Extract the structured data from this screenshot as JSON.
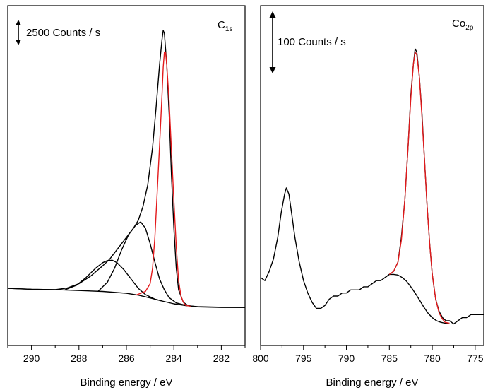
{
  "chart_data": [
    {
      "type": "line",
      "panel_label_main": "C",
      "panel_label_sub": "1s",
      "scale_bar_text": "2500 Counts / s",
      "xlabel": "Binding energy / eV",
      "ylabel": "",
      "xlim": [
        291,
        281
      ],
      "ylim": [
        -0.05,
        1.05
      ],
      "x_ticks": [
        290,
        288,
        286,
        284,
        282
      ],
      "series": [
        {
          "color": "#000000",
          "points": [
            [
              291,
              0.135
            ],
            [
              290,
              0.132
            ],
            [
              289,
              0.131
            ],
            [
              288.5,
              0.136
            ],
            [
              288,
              0.15
            ],
            [
              287.5,
              0.175
            ],
            [
              287,
              0.208
            ],
            [
              286.7,
              0.23
            ],
            [
              286.5,
              0.25
            ],
            [
              286.2,
              0.28
            ],
            [
              285.9,
              0.31
            ],
            [
              285.7,
              0.33
            ],
            [
              285.5,
              0.355
            ],
            [
              285.3,
              0.4
            ],
            [
              285.1,
              0.47
            ],
            [
              284.9,
              0.59
            ],
            [
              284.75,
              0.72
            ],
            [
              284.6,
              0.86
            ],
            [
              284.5,
              0.94
            ],
            [
              284.45,
              0.97
            ],
            [
              284.4,
              0.96
            ],
            [
              284.3,
              0.86
            ],
            [
              284.2,
              0.7
            ],
            [
              284.1,
              0.5
            ],
            [
              284.0,
              0.33
            ],
            [
              283.9,
              0.2
            ],
            [
              283.8,
              0.13
            ],
            [
              283.6,
              0.09
            ],
            [
              283.4,
              0.079
            ],
            [
              283,
              0.075
            ],
            [
              282,
              0.073
            ],
            [
              281,
              0.073
            ]
          ]
        },
        {
          "color": "#000000",
          "points": [
            [
              291,
              0.135
            ],
            [
              290,
              0.132
            ],
            [
              289,
              0.131
            ],
            [
              288,
              0.128
            ],
            [
              287,
              0.125
            ],
            [
              286,
              0.119
            ],
            [
              285.5,
              0.113
            ],
            [
              285,
              0.104
            ],
            [
              284.5,
              0.094
            ],
            [
              284,
              0.085
            ],
            [
              283.5,
              0.079
            ],
            [
              283,
              0.076
            ],
            [
              282,
              0.074
            ],
            [
              281,
              0.073
            ]
          ]
        },
        {
          "color": "#000000",
          "points": [
            [
              288.6,
              0.13
            ],
            [
              288.1,
              0.145
            ],
            [
              287.7,
              0.17
            ],
            [
              287.3,
              0.2
            ],
            [
              287,
              0.218
            ],
            [
              286.8,
              0.225
            ],
            [
              286.6,
              0.226
            ],
            [
              286.4,
              0.218
            ],
            [
              286.1,
              0.195
            ],
            [
              285.8,
              0.165
            ],
            [
              285.5,
              0.135
            ],
            [
              285.2,
              0.115
            ],
            [
              284.8,
              0.1
            ],
            [
              284.5,
              0.094
            ]
          ]
        },
        {
          "color": "#000000",
          "points": [
            [
              287.2,
              0.125
            ],
            [
              286.8,
              0.155
            ],
            [
              286.5,
              0.2
            ],
            [
              286.2,
              0.26
            ],
            [
              285.9,
              0.31
            ],
            [
              285.6,
              0.34
            ],
            [
              285.4,
              0.35
            ],
            [
              285.2,
              0.33
            ],
            [
              285.0,
              0.28
            ],
            [
              284.8,
              0.22
            ],
            [
              284.6,
              0.165
            ],
            [
              284.4,
              0.13
            ],
            [
              284.2,
              0.105
            ],
            [
              283.9,
              0.088
            ],
            [
              283.5,
              0.08
            ]
          ]
        },
        {
          "color": "#e31a1c",
          "points": [
            [
              285.6,
              0.113
            ],
            [
              285.2,
              0.125
            ],
            [
              285.0,
              0.15
            ],
            [
              284.9,
              0.2
            ],
            [
              284.8,
              0.3
            ],
            [
              284.7,
              0.45
            ],
            [
              284.6,
              0.6
            ],
            [
              284.5,
              0.76
            ],
            [
              284.45,
              0.85
            ],
            [
              284.4,
              0.9
            ],
            [
              284.35,
              0.9
            ],
            [
              284.3,
              0.86
            ],
            [
              284.2,
              0.74
            ],
            [
              284.1,
              0.58
            ],
            [
              284.0,
              0.42
            ],
            [
              283.9,
              0.27
            ],
            [
              283.8,
              0.16
            ],
            [
              283.7,
              0.11
            ],
            [
              283.6,
              0.09
            ],
            [
              283.5,
              0.08
            ],
            [
              283.3,
              0.077
            ]
          ]
        }
      ]
    },
    {
      "type": "line",
      "panel_label_main": "Co",
      "panel_label_sub": "2p",
      "scale_bar_text": "100 Counts / s",
      "xlabel": "Binding energy / eV",
      "ylabel": "",
      "xlim": [
        800,
        774
      ],
      "ylim": [
        -0.05,
        1.05
      ],
      "x_ticks": [
        800,
        795,
        790,
        785,
        780,
        775
      ],
      "series": [
        {
          "color": "#000000",
          "points": [
            [
              800,
              0.17
            ],
            [
              799.5,
              0.16
            ],
            [
              799,
              0.19
            ],
            [
              798.5,
              0.23
            ],
            [
              798,
              0.3
            ],
            [
              797.6,
              0.38
            ],
            [
              797.2,
              0.44
            ],
            [
              797,
              0.46
            ],
            [
              796.7,
              0.44
            ],
            [
              796.4,
              0.38
            ],
            [
              796,
              0.3
            ],
            [
              795.5,
              0.22
            ],
            [
              795,
              0.16
            ],
            [
              794.5,
              0.12
            ],
            [
              794,
              0.09
            ],
            [
              793.5,
              0.07
            ],
            [
              793,
              0.07
            ],
            [
              792.5,
              0.08
            ],
            [
              792,
              0.1
            ],
            [
              791.5,
              0.11
            ],
            [
              791,
              0.11
            ],
            [
              790.5,
              0.12
            ],
            [
              790,
              0.12
            ],
            [
              789.5,
              0.13
            ],
            [
              789,
              0.13
            ],
            [
              788.5,
              0.13
            ],
            [
              788,
              0.14
            ],
            [
              787.5,
              0.14
            ],
            [
              787,
              0.15
            ],
            [
              786.5,
              0.16
            ],
            [
              786,
              0.16
            ],
            [
              785.5,
              0.17
            ],
            [
              785,
              0.18
            ],
            [
              784.5,
              0.19
            ],
            [
              784,
              0.22
            ],
            [
              783.6,
              0.3
            ],
            [
              783.2,
              0.42
            ],
            [
              782.8,
              0.6
            ],
            [
              782.5,
              0.76
            ],
            [
              782.2,
              0.86
            ],
            [
              782,
              0.91
            ],
            [
              781.8,
              0.9
            ],
            [
              781.5,
              0.82
            ],
            [
              781.2,
              0.7
            ],
            [
              780.9,
              0.55
            ],
            [
              780.6,
              0.4
            ],
            [
              780.3,
              0.28
            ],
            [
              780,
              0.18
            ],
            [
              779.6,
              0.1
            ],
            [
              779.2,
              0.06
            ],
            [
              778.8,
              0.04
            ],
            [
              778.4,
              0.03
            ],
            [
              778,
              0.03
            ],
            [
              777.5,
              0.02
            ],
            [
              777,
              0.03
            ],
            [
              776.5,
              0.04
            ],
            [
              776,
              0.04
            ],
            [
              775.5,
              0.05
            ],
            [
              775,
              0.05
            ],
            [
              774.5,
              0.05
            ],
            [
              774,
              0.05
            ]
          ]
        },
        {
          "color": "#000000",
          "points": [
            [
              785.5,
              0.17
            ],
            [
              785,
              0.18
            ],
            [
              784.5,
              0.18
            ],
            [
              784,
              0.178
            ],
            [
              783.5,
              0.17
            ],
            [
              783,
              0.158
            ],
            [
              782.5,
              0.14
            ],
            [
              782,
              0.12
            ],
            [
              781.5,
              0.098
            ],
            [
              781,
              0.075
            ],
            [
              780.5,
              0.055
            ],
            [
              780,
              0.04
            ],
            [
              779.5,
              0.03
            ],
            [
              779,
              0.025
            ],
            [
              778.5,
              0.022
            ],
            [
              778,
              0.022
            ]
          ]
        },
        {
          "color": "#e31a1c",
          "points": [
            [
              785,
              0.18
            ],
            [
              784.5,
              0.19
            ],
            [
              784,
              0.22
            ],
            [
              783.6,
              0.29
            ],
            [
              783.2,
              0.42
            ],
            [
              782.8,
              0.6
            ],
            [
              782.5,
              0.75
            ],
            [
              782.2,
              0.86
            ],
            [
              782,
              0.9
            ],
            [
              781.8,
              0.89
            ],
            [
              781.5,
              0.82
            ],
            [
              781.2,
              0.69
            ],
            [
              780.9,
              0.55
            ],
            [
              780.6,
              0.4
            ],
            [
              780.3,
              0.28
            ],
            [
              780,
              0.18
            ],
            [
              779.6,
              0.1
            ],
            [
              779.2,
              0.055
            ],
            [
              778.8,
              0.035
            ],
            [
              778.5,
              0.025
            ],
            [
              778,
              0.022
            ]
          ]
        }
      ]
    }
  ]
}
